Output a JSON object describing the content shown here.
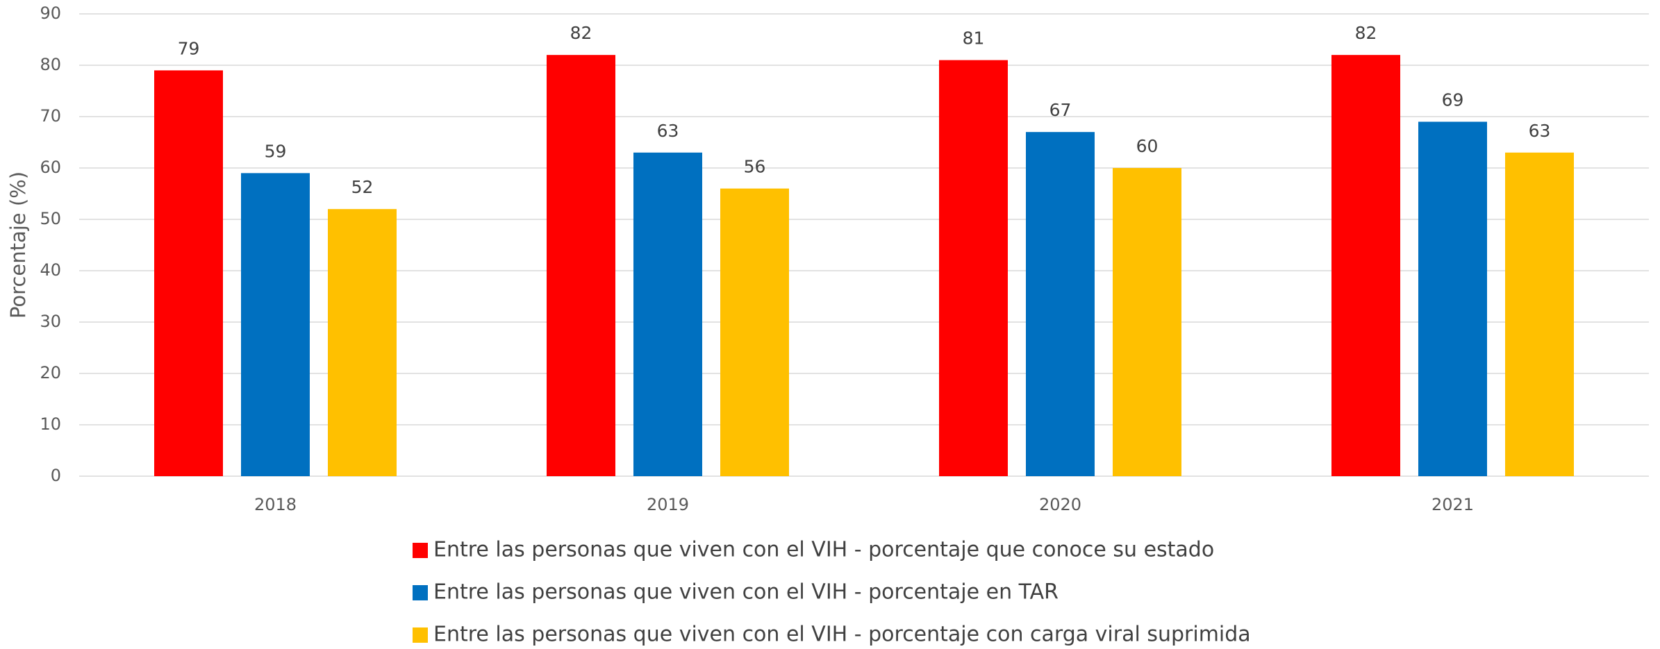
{
  "chart_data": {
    "type": "bar",
    "y_label": "Porcentaje (%)",
    "categories": [
      "2018",
      "2019",
      "2020",
      "2021"
    ],
    "series": [
      {
        "name": "Entre las personas que viven con el VIH - porcentaje que conoce su estado",
        "color": "#ff0000",
        "values": [
          79,
          82,
          81,
          82
        ]
      },
      {
        "name": "Entre las personas que viven con el VIH - porcentaje en TAR",
        "color": "#0070c0",
        "values": [
          59,
          63,
          67,
          69
        ]
      },
      {
        "name": "Entre las personas que viven con el VIH - porcentaje con carga viral suprimida",
        "color": "#ffc000",
        "values": [
          52,
          56,
          60,
          63
        ]
      }
    ],
    "ylim": [
      0,
      90
    ],
    "yticks": [
      0,
      10,
      20,
      30,
      40,
      50,
      60,
      70,
      80,
      90
    ],
    "grid": true,
    "legend": "bottom"
  }
}
